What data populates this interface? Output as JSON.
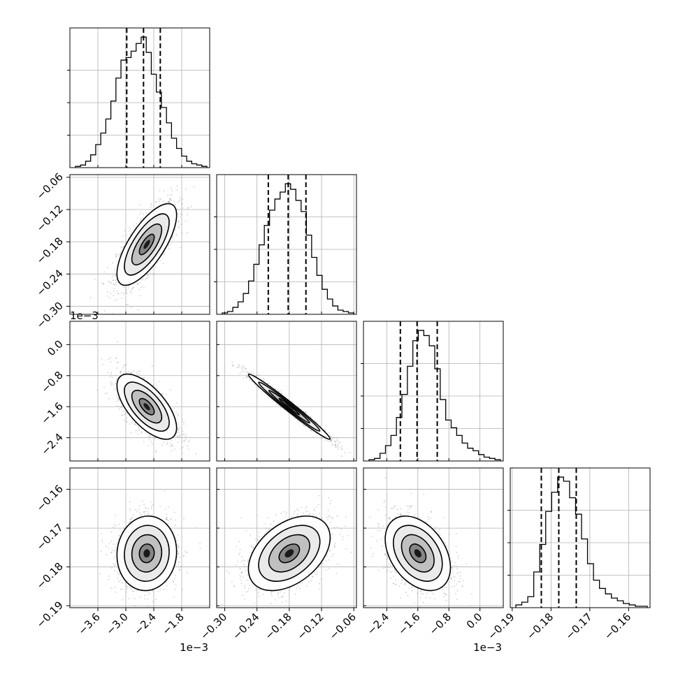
{
  "chart_data": {
    "type": "corner",
    "description_free": true,
    "variables": [
      {
        "range": [
          -4.2,
          -1.2
        ],
        "ticks": [
          -3.6,
          -3.0,
          -2.4,
          -1.8
        ],
        "tick_labels": [
          "−3.6",
          "−3.0",
          "−2.4",
          "−1.8"
        ],
        "offset_label": "1e−3",
        "quantiles": [
          -2.98,
          -2.62,
          -2.26
        ],
        "hist_counts": [
          1,
          2,
          5,
          10,
          18,
          27,
          38,
          52,
          70,
          84,
          86,
          91,
          97,
          102,
          90,
          73,
          59,
          47,
          35,
          23,
          15,
          9,
          5,
          3,
          2,
          1
        ]
      },
      {
        "range": [
          -0.315,
          -0.055
        ],
        "ticks": [
          -0.3,
          -0.24,
          -0.18,
          -0.12,
          -0.06
        ],
        "tick_labels": [
          "−0.30",
          "−0.24",
          "−0.18",
          "−0.12",
          "−0.06"
        ],
        "offset_label": "",
        "quantiles": [
          -0.219,
          -0.182,
          -0.149
        ],
        "hist_counts": [
          1,
          2,
          5,
          9,
          15,
          24,
          36,
          50,
          64,
          75,
          83,
          88,
          94,
          90,
          82,
          74,
          57,
          41,
          28,
          18,
          11,
          6,
          3,
          2,
          1
        ]
      },
      {
        "range": [
          -3.0,
          0.6
        ],
        "ticks": [
          -2.4,
          -1.6,
          -0.8,
          0.0
        ],
        "tick_labels": [
          "−2.4",
          "−1.6",
          "−0.8",
          "0.0"
        ],
        "offset_label": "1e−3",
        "quantiles": [
          -2.05,
          -1.62,
          -1.1
        ],
        "hist_counts": [
          1,
          2,
          6,
          12,
          20,
          34,
          52,
          74,
          94,
          102,
          98,
          90,
          72,
          48,
          32,
          26,
          20,
          14,
          10,
          8,
          5,
          3,
          2,
          1
        ]
      },
      {
        "range": [
          -0.1905,
          -0.1545
        ],
        "ticks": [
          -0.19,
          -0.18,
          -0.17,
          -0.16
        ],
        "tick_labels": [
          "−0.19",
          "−0.18",
          "−0.17",
          "−0.16"
        ],
        "offset_label": "",
        "quantiles": [
          -0.1825,
          -0.178,
          -0.1735
        ],
        "hist_counts": [
          2,
          4,
          8,
          26,
          46,
          70,
          84,
          95,
          92,
          80,
          68,
          50,
          32,
          20,
          14,
          10,
          7,
          5,
          3,
          2,
          1,
          1
        ]
      }
    ],
    "pairs": [
      {
        "row": 1,
        "col": 0,
        "mean": [
          -2.55,
          -0.185
        ],
        "sd": [
          0.32,
          0.038
        ],
        "corr": 0.72
      },
      {
        "row": 2,
        "col": 0,
        "mean": [
          -2.55,
          -1.6
        ],
        "sd": [
          0.32,
          0.42
        ],
        "corr": -0.65
      },
      {
        "row": 2,
        "col": 1,
        "mean": [
          -0.18,
          -1.6
        ],
        "sd": [
          0.038,
          0.42
        ],
        "corr": -0.985
      },
      {
        "row": 3,
        "col": 0,
        "mean": [
          -2.55,
          -0.1765
        ],
        "sd": [
          0.32,
          0.0048
        ],
        "corr": 0.05
      },
      {
        "row": 3,
        "col": 1,
        "mean": [
          -0.18,
          -0.1765
        ],
        "sd": [
          0.038,
          0.0048
        ],
        "corr": 0.42
      },
      {
        "row": 3,
        "col": 2,
        "mean": [
          -1.6,
          -0.1765
        ],
        "sd": [
          0.42,
          0.0048
        ],
        "corr": -0.38
      }
    ],
    "grid": true,
    "n_samples_per_panel": 1400
  }
}
